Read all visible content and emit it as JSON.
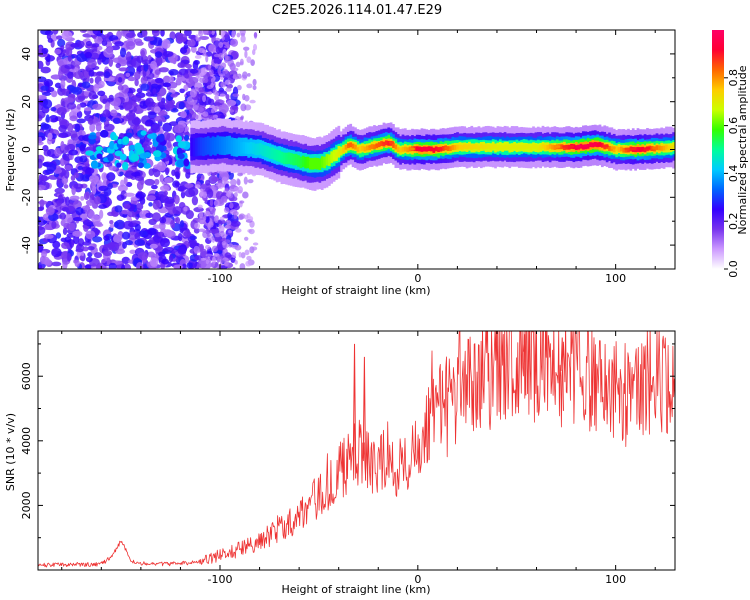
{
  "title": "C2E5.2026.114.01.47.E29",
  "chart_data": [
    {
      "type": "heatmap",
      "name": "spectrogram",
      "xlabel": "Height of straight line (km)",
      "ylabel": "Frequency (Hz)",
      "xlim": [
        -192,
        130
      ],
      "ylim": [
        -50,
        50
      ],
      "xticks": [
        -100,
        0,
        100
      ],
      "xtick_labels": [
        "-100",
        "0",
        "100"
      ],
      "yticks": [
        -40,
        -20,
        0,
        20,
        40
      ],
      "ytick_labels": [
        "-40",
        "-20",
        "0",
        "20",
        "40"
      ],
      "colorbar": {
        "label": "Normalized spectral amplitude",
        "range": [
          0,
          1
        ],
        "ticks": [
          0.0,
          0.2,
          0.4,
          0.6,
          0.8
        ],
        "tick_labels": [
          "0.0",
          "0.2",
          "0.4",
          "0.6",
          "0.8"
        ],
        "colormap": [
          "#ffffff",
          "#cc99ff",
          "#7733ee",
          "#3300ff",
          "#0066ff",
          "#00ccff",
          "#00ff99",
          "#33ff00",
          "#ccff00",
          "#ffcc00",
          "#ff6600",
          "#ff0033",
          "#ff0066"
        ]
      },
      "ridge": {
        "x": [
          -115,
          -110,
          -100,
          -90,
          -80,
          -70,
          -60,
          -55,
          -50,
          -45,
          -40,
          -35,
          -30,
          -25,
          -20,
          -15,
          -10,
          -5,
          0,
          10,
          20,
          40,
          60,
          80,
          90,
          100,
          110,
          130
        ],
        "freq": [
          1,
          1,
          2,
          1,
          0,
          -3,
          -5,
          -6,
          -6,
          -4,
          -1,
          2,
          0,
          1,
          2,
          3,
          0,
          0,
          0,
          0,
          1,
          1,
          1,
          1,
          2,
          0,
          0,
          1
        ],
        "amplitude": [
          0.25,
          0.3,
          0.35,
          0.4,
          0.45,
          0.5,
          0.55,
          0.6,
          0.6,
          0.65,
          0.7,
          0.85,
          0.75,
          0.8,
          0.85,
          0.9,
          0.75,
          0.8,
          0.95,
          0.9,
          0.75,
          0.7,
          0.7,
          0.95,
          0.95,
          0.75,
          0.95,
          0.7
        ]
      }
    },
    {
      "type": "line",
      "name": "snr",
      "xlabel": "Height of straight line (km)",
      "ylabel": "SNR (10 * v/v)",
      "xlim": [
        -192,
        130
      ],
      "ylim": [
        0,
        7400
      ],
      "xticks": [
        -100,
        0,
        100
      ],
      "xtick_labels": [
        "-100",
        "0",
        "100"
      ],
      "yticks": [
        2000,
        4000,
        6000
      ],
      "ytick_labels": [
        "2000",
        "4000",
        "6000"
      ],
      "color": "#ee3333",
      "x": [
        -192,
        -180,
        -170,
        -160,
        -155,
        -150,
        -145,
        -140,
        -130,
        -120,
        -110,
        -100,
        -90,
        -80,
        -70,
        -60,
        -50,
        -45,
        -40,
        -35,
        -30,
        -25,
        -20,
        -15,
        -10,
        -5,
        0,
        5,
        10,
        20,
        30,
        40,
        50,
        55,
        60,
        70,
        80,
        90,
        100,
        105,
        110,
        120,
        130
      ],
      "y": [
        150,
        160,
        170,
        180,
        400,
        900,
        300,
        200,
        180,
        200,
        250,
        450,
        650,
        900,
        1300,
        1700,
        2300,
        2600,
        3000,
        3300,
        3700,
        3300,
        3200,
        3600,
        3100,
        3400,
        4000,
        4600,
        5100,
        5500,
        5900,
        6200,
        6600,
        6800,
        6300,
        6100,
        6300,
        5800,
        5600,
        5200,
        5500,
        5900,
        5700
      ],
      "spikes": [
        {
          "x": -32,
          "y": 7000
        },
        {
          "x": -27,
          "y": 6600
        },
        {
          "x": 54,
          "y": 7300
        },
        {
          "x": 73,
          "y": 7200
        }
      ]
    }
  ]
}
